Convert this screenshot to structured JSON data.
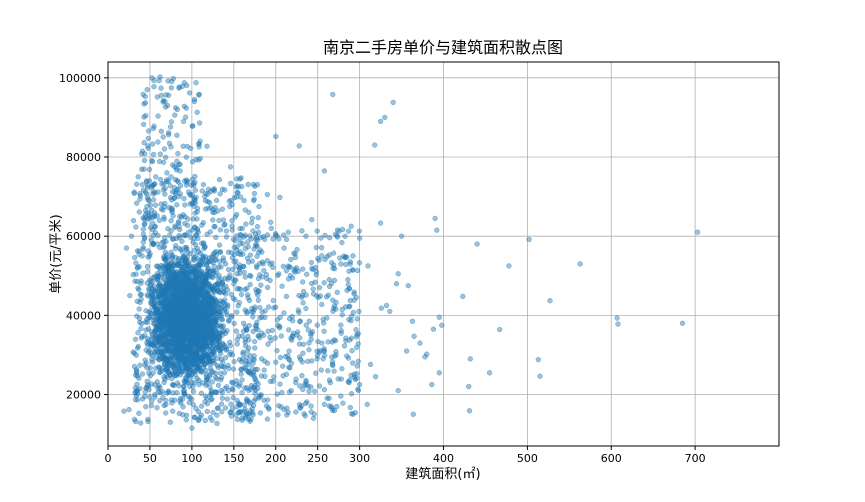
{
  "chart_data": {
    "type": "scatter",
    "title": "南京二手房单价与建筑面积散点图",
    "xlabel": "建筑面积(㎡)",
    "ylabel": "单价(元/平米)",
    "xlim": [
      0,
      800
    ],
    "ylim": [
      7000,
      104000
    ],
    "xticks": [
      0,
      50,
      100,
      150,
      200,
      250,
      300,
      400,
      500,
      600,
      700
    ],
    "xtick_labels": [
      "0",
      "50",
      "100",
      "150",
      "200",
      "250",
      "300",
      "400",
      "500",
      "600",
      "700"
    ],
    "yticks": [
      20000,
      40000,
      60000,
      80000,
      100000
    ],
    "ytick_labels": [
      "20000",
      "40000",
      "60000",
      "80000",
      "100000"
    ],
    "grid": true,
    "marker_color": "#1f77b4",
    "marker_alpha": 0.45,
    "dense_regions": [
      {
        "x_range": [
          38,
          150
        ],
        "y_range": [
          19000,
          60000
        ],
        "count": 2600
      },
      {
        "x_range": [
          30,
          180
        ],
        "y_range": [
          13000,
          75000
        ],
        "count": 900
      },
      {
        "x_range": [
          150,
          300
        ],
        "y_range": [
          14000,
          62000
        ],
        "count": 420
      },
      {
        "x_range": [
          40,
          110
        ],
        "y_range": [
          60000,
          100000
        ],
        "count": 140
      }
    ],
    "points": [
      [
        268,
        95800
      ],
      [
        340,
        93800
      ],
      [
        330,
        90000
      ],
      [
        325,
        89000
      ],
      [
        318,
        83000
      ],
      [
        228,
        82800
      ],
      [
        200,
        85200
      ],
      [
        258,
        76500
      ],
      [
        103,
        94000
      ],
      [
        290,
        62500
      ],
      [
        300,
        59500
      ],
      [
        310,
        52500
      ],
      [
        325,
        63300
      ],
      [
        350,
        60000
      ],
      [
        390,
        64500
      ],
      [
        392,
        61500
      ],
      [
        440,
        58000
      ],
      [
        502,
        59200
      ],
      [
        563,
        53000
      ],
      [
        703,
        61000
      ],
      [
        478,
        52500
      ],
      [
        527,
        43700
      ],
      [
        607,
        39300
      ],
      [
        608,
        37800
      ],
      [
        685,
        38000
      ],
      [
        423,
        44800
      ],
      [
        467,
        36400
      ],
      [
        395,
        39500
      ],
      [
        398,
        37500
      ],
      [
        388,
        36500
      ],
      [
        380,
        30200
      ],
      [
        395,
        25500
      ],
      [
        378,
        29500
      ],
      [
        432,
        29000
      ],
      [
        455,
        25500
      ],
      [
        513,
        28800
      ],
      [
        515,
        24600
      ],
      [
        430,
        22000
      ],
      [
        431,
        15900
      ],
      [
        364,
        15000
      ],
      [
        346,
        21000
      ],
      [
        386,
        22500
      ],
      [
        336,
        41000
      ],
      [
        326,
        41800
      ],
      [
        332,
        42500
      ],
      [
        346,
        50500
      ],
      [
        344,
        48000
      ],
      [
        358,
        47500
      ],
      [
        365,
        34700
      ],
      [
        372,
        33000
      ],
      [
        356,
        31000
      ],
      [
        363,
        38500
      ],
      [
        313,
        27600
      ],
      [
        319,
        24500
      ],
      [
        309,
        17500
      ],
      [
        292,
        15000
      ],
      [
        300,
        22500
      ],
      [
        296,
        44500
      ],
      [
        286,
        49000
      ],
      [
        278,
        35500
      ],
      [
        272,
        30000
      ],
      [
        265,
        23000
      ],
      [
        258,
        17500
      ],
      [
        243,
        64200
      ],
      [
        236,
        60000
      ],
      [
        215,
        61000
      ],
      [
        175,
        72600
      ],
      [
        205,
        69800
      ],
      [
        190,
        70500
      ],
      [
        146,
        77500
      ],
      [
        118,
        82700
      ],
      [
        110,
        79600
      ],
      [
        78,
        99800
      ],
      [
        62,
        100200
      ],
      [
        55,
        99300
      ],
      [
        68,
        94000
      ],
      [
        90,
        89000
      ],
      [
        48,
        82200
      ],
      [
        40,
        80800
      ],
      [
        36,
        75000
      ],
      [
        28,
        60000
      ],
      [
        22,
        57000
      ],
      [
        26,
        45000
      ],
      [
        19,
        15800
      ],
      [
        25,
        16200
      ],
      [
        39,
        12800
      ],
      [
        33,
        13200
      ],
      [
        100,
        11500
      ],
      [
        130,
        12700
      ],
      [
        160,
        13500
      ],
      [
        190,
        13800
      ],
      [
        215,
        15500
      ],
      [
        245,
        14000
      ],
      [
        270,
        16000
      ],
      [
        280,
        17800
      ],
      [
        262,
        26000
      ],
      [
        255,
        33000
      ],
      [
        240,
        38500
      ],
      [
        232,
        45000
      ],
      [
        225,
        52000
      ],
      [
        210,
        57000
      ],
      [
        194,
        63500
      ],
      [
        180,
        67500
      ],
      [
        168,
        66000
      ]
    ]
  }
}
